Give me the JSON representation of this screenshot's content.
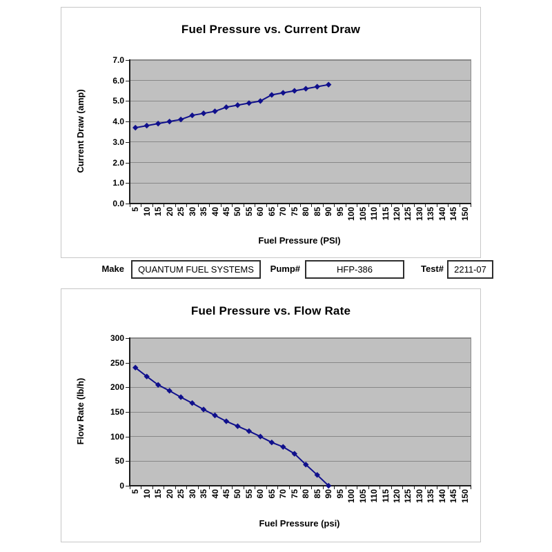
{
  "form": {
    "make_label": "Make",
    "make_value": "QUANTUM FUEL SYSTEMS",
    "pump_label": "Pump#",
    "pump_value": "HFP-386",
    "test_label": "Test#",
    "test_value": "2211-07"
  },
  "colors": {
    "line": "#10108c",
    "plot_background": "#c0c0c0",
    "gridline": "#878787"
  },
  "chart_data": [
    {
      "type": "line",
      "title": "Fuel Pressure vs. Current Draw",
      "xlabel": "Fuel Pressure (PSI)",
      "ylabel": "Current Draw (amp)",
      "x_axis_ticks": [
        5,
        10,
        15,
        20,
        25,
        30,
        35,
        40,
        45,
        50,
        55,
        60,
        65,
        70,
        75,
        80,
        85,
        90,
        95,
        100,
        105,
        110,
        115,
        120,
        125,
        130,
        135,
        140,
        145,
        150
      ],
      "y_tick_labels": [
        "0.0",
        "1.0",
        "2.0",
        "3.0",
        "4.0",
        "5.0",
        "6.0",
        "7.0"
      ],
      "ylim": [
        0,
        7
      ],
      "x": [
        5,
        10,
        15,
        20,
        25,
        30,
        35,
        40,
        45,
        50,
        55,
        60,
        65,
        70,
        75,
        80,
        85,
        90
      ],
      "values": [
        3.7,
        3.8,
        3.9,
        4.0,
        4.1,
        4.3,
        4.4,
        4.5,
        4.7,
        4.8,
        4.9,
        5.0,
        5.3,
        5.4,
        5.5,
        5.6,
        5.7,
        5.8
      ],
      "grid": true,
      "legend": "none",
      "marker": "diamond"
    },
    {
      "type": "line",
      "title": "Fuel Pressure vs. Flow Rate",
      "xlabel": "Fuel Pressure (psi)",
      "ylabel": "Flow Rate (lb/h)",
      "x_axis_ticks": [
        5,
        10,
        15,
        20,
        25,
        30,
        35,
        40,
        45,
        50,
        55,
        60,
        65,
        70,
        75,
        80,
        85,
        90,
        95,
        100,
        105,
        110,
        115,
        120,
        125,
        130,
        135,
        140,
        145,
        150
      ],
      "y_tick_labels": [
        "0",
        "50",
        "100",
        "150",
        "200",
        "250",
        "300"
      ],
      "ylim": [
        0,
        300
      ],
      "x": [
        5,
        10,
        15,
        20,
        25,
        30,
        35,
        40,
        45,
        50,
        55,
        60,
        65,
        70,
        75,
        80,
        85,
        90
      ],
      "values": [
        240,
        222,
        205,
        193,
        180,
        168,
        155,
        143,
        131,
        121,
        111,
        100,
        88,
        79,
        65,
        43,
        22,
        0
      ],
      "grid": true,
      "legend": "none",
      "marker": "diamond"
    }
  ]
}
